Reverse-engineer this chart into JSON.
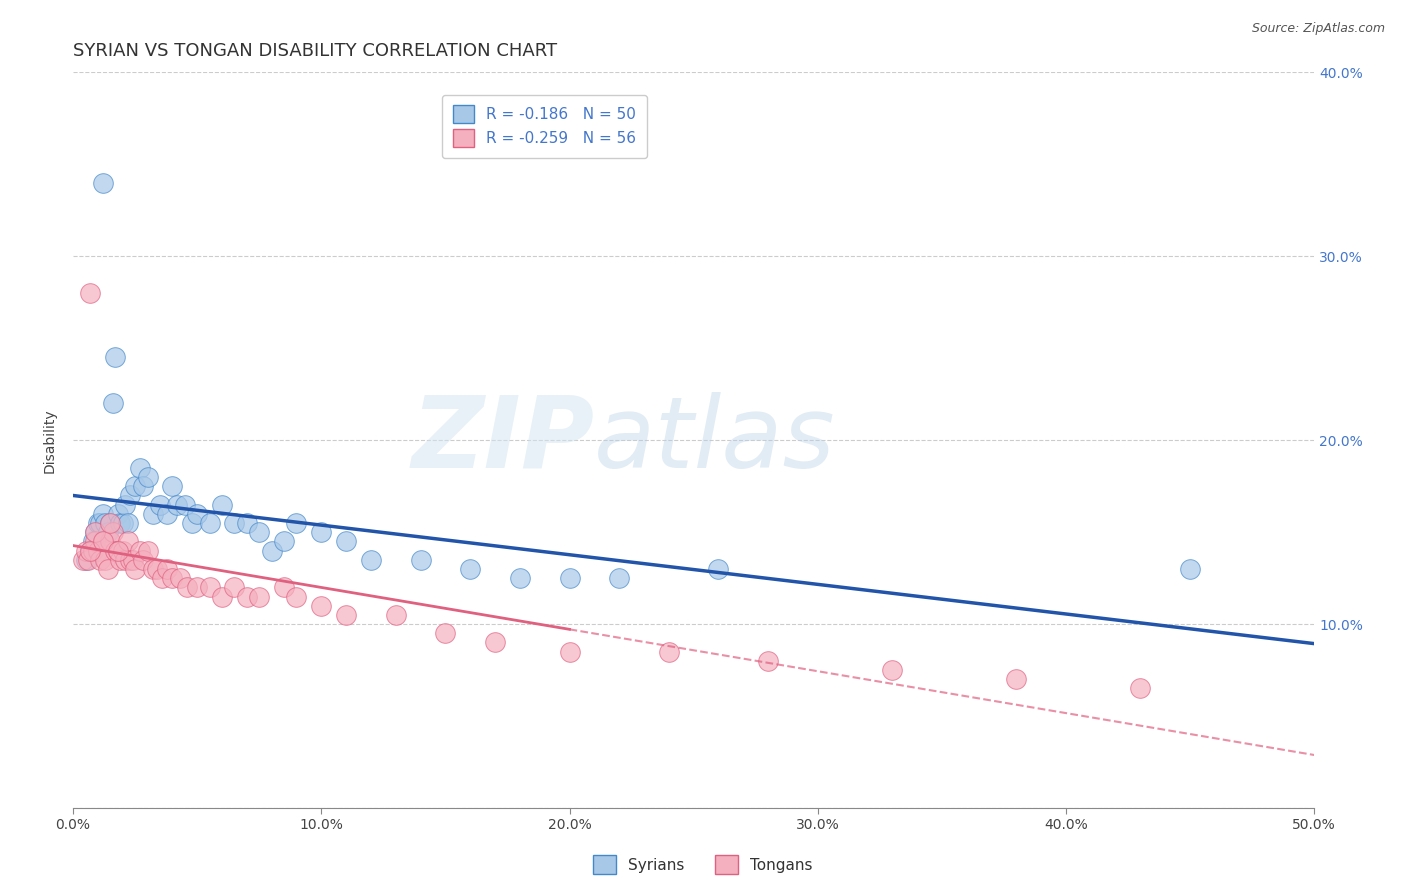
{
  "title": "SYRIAN VS TONGAN DISABILITY CORRELATION CHART",
  "source": "Source: ZipAtlas.com",
  "ylabel": "Disability",
  "xlim": [
    0.0,
    0.5
  ],
  "ylim": [
    0.0,
    0.4
  ],
  "xticks": [
    0.0,
    0.1,
    0.2,
    0.3,
    0.4,
    0.5
  ],
  "yticks": [
    0.0,
    0.1,
    0.2,
    0.3,
    0.4
  ],
  "ytick_labels_right": [
    "",
    "10.0%",
    "20.0%",
    "30.0%",
    "40.0%"
  ],
  "xtick_labels": [
    "0.0%",
    "10.0%",
    "20.0%",
    "30.0%",
    "40.0%",
    "50.0%"
  ],
  "background_color": "#ffffff",
  "grid_color": "#cccccc",
  "blue_scatter_color": "#a8c8e8",
  "blue_scatter_edge": "#4488cc",
  "blue_line_color": "#2255aa",
  "pink_scatter_color": "#f5b0bf",
  "pink_scatter_edge": "#e06080",
  "pink_line_color": "#e06080",
  "legend_r_blue": "R = -0.186   N = 50",
  "legend_r_pink": "R = -0.259   N = 56",
  "syrians_x": [
    0.012,
    0.005,
    0.007,
    0.008,
    0.009,
    0.01,
    0.011,
    0.012,
    0.013,
    0.014,
    0.015,
    0.016,
    0.017,
    0.018,
    0.019,
    0.02,
    0.021,
    0.022,
    0.023,
    0.025,
    0.027,
    0.028,
    0.03,
    0.032,
    0.035,
    0.038,
    0.04,
    0.042,
    0.045,
    0.048,
    0.05,
    0.055,
    0.06,
    0.065,
    0.07,
    0.075,
    0.08,
    0.085,
    0.09,
    0.1,
    0.11,
    0.12,
    0.14,
    0.16,
    0.18,
    0.2,
    0.22,
    0.26,
    0.45,
    0.007
  ],
  "syrians_y": [
    0.34,
    0.135,
    0.14,
    0.145,
    0.15,
    0.155,
    0.155,
    0.16,
    0.155,
    0.15,
    0.155,
    0.22,
    0.245,
    0.16,
    0.155,
    0.155,
    0.165,
    0.155,
    0.17,
    0.175,
    0.185,
    0.175,
    0.18,
    0.16,
    0.165,
    0.16,
    0.175,
    0.165,
    0.165,
    0.155,
    0.16,
    0.155,
    0.165,
    0.155,
    0.155,
    0.15,
    0.14,
    0.145,
    0.155,
    0.15,
    0.145,
    0.135,
    0.135,
    0.13,
    0.125,
    0.125,
    0.125,
    0.13,
    0.13,
    0.14
  ],
  "tongans_x": [
    0.004,
    0.005,
    0.006,
    0.007,
    0.008,
    0.009,
    0.01,
    0.011,
    0.012,
    0.013,
    0.014,
    0.015,
    0.016,
    0.017,
    0.018,
    0.019,
    0.02,
    0.021,
    0.022,
    0.023,
    0.024,
    0.025,
    0.027,
    0.028,
    0.03,
    0.032,
    0.034,
    0.036,
    0.038,
    0.04,
    0.043,
    0.046,
    0.05,
    0.055,
    0.06,
    0.065,
    0.07,
    0.075,
    0.085,
    0.09,
    0.1,
    0.11,
    0.13,
    0.15,
    0.17,
    0.2,
    0.24,
    0.28,
    0.33,
    0.38,
    0.43,
    0.007,
    0.009,
    0.012,
    0.015,
    0.018
  ],
  "tongans_y": [
    0.135,
    0.14,
    0.135,
    0.28,
    0.14,
    0.145,
    0.14,
    0.135,
    0.145,
    0.135,
    0.13,
    0.145,
    0.15,
    0.14,
    0.14,
    0.135,
    0.14,
    0.135,
    0.145,
    0.135,
    0.135,
    0.13,
    0.14,
    0.135,
    0.14,
    0.13,
    0.13,
    0.125,
    0.13,
    0.125,
    0.125,
    0.12,
    0.12,
    0.12,
    0.115,
    0.12,
    0.115,
    0.115,
    0.12,
    0.115,
    0.11,
    0.105,
    0.105,
    0.095,
    0.09,
    0.085,
    0.085,
    0.08,
    0.075,
    0.07,
    0.065,
    0.14,
    0.15,
    0.145,
    0.155,
    0.14
  ],
  "watermark_zip": "ZIP",
  "watermark_atlas": "atlas",
  "title_fontsize": 13,
  "axis_label_fontsize": 10,
  "tick_fontsize": 10,
  "legend_fontsize": 11
}
